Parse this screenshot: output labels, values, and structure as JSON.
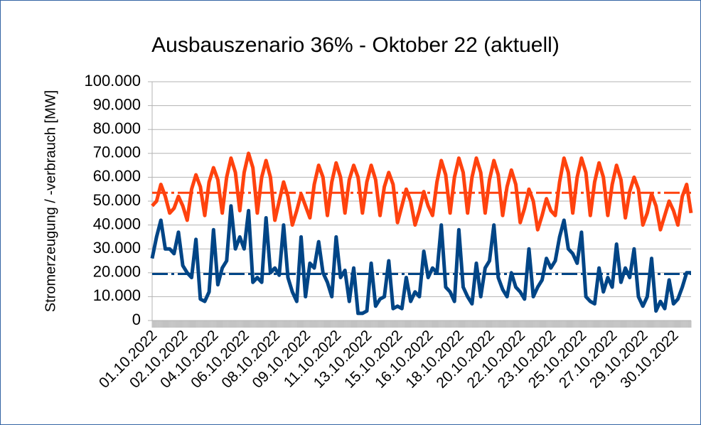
{
  "chart_data": {
    "type": "line",
    "title": "Ausbauszenario 36% - Oktober 22 (aktuell)",
    "y_label": "Stromerzeugung / -verbrauch [MW]",
    "categories": [
      "01.10.2022",
      null,
      null,
      null,
      null,
      null,
      null,
      "02.10.2022",
      null,
      null,
      null,
      null,
      null,
      null,
      "04.10.2022",
      null,
      null,
      null,
      null,
      null,
      null,
      "06.10.2022",
      null,
      null,
      null,
      null,
      null,
      null,
      "08.10.2022",
      null,
      null,
      null,
      null,
      null,
      null,
      "09.10.2022",
      null,
      null,
      null,
      null,
      null,
      null,
      "11.10.2022",
      null,
      null,
      null,
      null,
      null,
      null,
      "13.10.2022",
      null,
      null,
      null,
      null,
      null,
      null,
      "15.10.2022",
      null,
      null,
      null,
      null,
      null,
      null,
      "16.10.2022",
      null,
      null,
      null,
      null,
      null,
      null,
      "18.10.2022",
      null,
      null,
      null,
      null,
      null,
      null,
      "20.10.2022",
      null,
      null,
      null,
      null,
      null,
      null,
      "22.10.2022",
      null,
      null,
      null,
      null,
      null,
      null,
      "23.10.2022",
      null,
      null,
      null,
      null,
      null,
      null,
      "25.10.2022",
      null,
      null,
      null,
      null,
      null,
      null,
      "27.10.2022",
      null,
      null,
      null,
      null,
      null,
      null,
      "29.10.2022",
      null,
      null,
      null,
      null,
      null,
      null,
      "30.10.2022",
      null,
      null,
      null,
      null
    ],
    "series": [
      {
        "color": "#ff420e",
        "values": [
          48000,
          50000,
          57000,
          52000,
          45000,
          47000,
          52000,
          48000,
          42000,
          55000,
          61000,
          56000,
          44000,
          58000,
          64000,
          59000,
          45000,
          60000,
          68000,
          62000,
          46000,
          62000,
          70000,
          64000,
          45000,
          60000,
          67000,
          60000,
          42000,
          50000,
          58000,
          52000,
          40000,
          46000,
          53000,
          48000,
          43000,
          57000,
          65000,
          60000,
          44000,
          58000,
          66000,
          60000,
          45000,
          59000,
          65000,
          60000,
          45000,
          58000,
          65000,
          59000,
          44000,
          56000,
          62000,
          57000,
          41000,
          48000,
          55000,
          50000,
          40000,
          46000,
          54000,
          48000,
          44000,
          58000,
          67000,
          61000,
          45000,
          60000,
          68000,
          62000,
          45000,
          60000,
          68000,
          62000,
          45000,
          59000,
          67000,
          61000,
          44000,
          56000,
          63000,
          57000,
          41000,
          47000,
          55000,
          50000,
          38000,
          44000,
          51000,
          46000,
          44000,
          58000,
          68000,
          62000,
          45000,
          60000,
          68000,
          62000,
          44000,
          58000,
          66000,
          60000,
          44000,
          57000,
          65000,
          59000,
          43000,
          54000,
          60000,
          55000,
          40000,
          45000,
          53000,
          48000,
          38000,
          44000,
          50000,
          46000,
          40000,
          52000,
          57000,
          45000
        ]
      },
      {
        "color": "#004586",
        "values": [
          26000,
          35000,
          42000,
          30000,
          30000,
          28000,
          37000,
          23000,
          20000,
          18000,
          34000,
          9000,
          8000,
          12000,
          38000,
          15000,
          22000,
          25000,
          48000,
          30000,
          35000,
          30000,
          46000,
          16000,
          18000,
          16000,
          43000,
          20000,
          22000,
          19000,
          40000,
          18000,
          12000,
          8000,
          35000,
          10000,
          24000,
          22000,
          33000,
          20000,
          16000,
          10000,
          35000,
          18000,
          21000,
          8000,
          22000,
          3000,
          3000,
          4000,
          24000,
          6000,
          9000,
          10000,
          25000,
          5000,
          6000,
          5000,
          18000,
          8000,
          12000,
          10000,
          29000,
          18000,
          22000,
          20000,
          40000,
          14000,
          12000,
          8000,
          38000,
          14000,
          10000,
          7000,
          24000,
          10000,
          22000,
          25000,
          40000,
          18000,
          13000,
          10000,
          20000,
          14000,
          12000,
          9000,
          30000,
          10000,
          14000,
          17000,
          26000,
          22000,
          25000,
          35000,
          42000,
          30000,
          28000,
          24000,
          37000,
          10000,
          8000,
          7000,
          22000,
          12000,
          18000,
          14000,
          32000,
          16000,
          22000,
          18000,
          30000,
          10000,
          6000,
          10000,
          26000,
          4000,
          8000,
          5000,
          17000,
          7000,
          9000,
          14000,
          20000,
          20000
        ]
      }
    ],
    "reference_lines": [
      {
        "color": "#ff420e",
        "value": 53500
      },
      {
        "color": "#004586",
        "value": 19500
      }
    ],
    "ylim": [
      0,
      100000
    ],
    "yticks": [
      0,
      {
        "value": 10000,
        "label": "10.000"
      },
      {
        "value": 20000,
        "label": "20.000"
      },
      {
        "value": 30000,
        "label": "30.000"
      },
      {
        "value": 40000,
        "label": "40.000"
      },
      {
        "value": 50000,
        "label": "50.000"
      },
      {
        "value": 60000,
        "label": "60.000"
      },
      {
        "value": 70000,
        "label": "70.000"
      },
      {
        "value": 80000,
        "label": "80.000"
      },
      {
        "value": 90000,
        "label": "90.000"
      },
      {
        "value": 100000,
        "label": "100.000"
      }
    ],
    "grid": true
  }
}
